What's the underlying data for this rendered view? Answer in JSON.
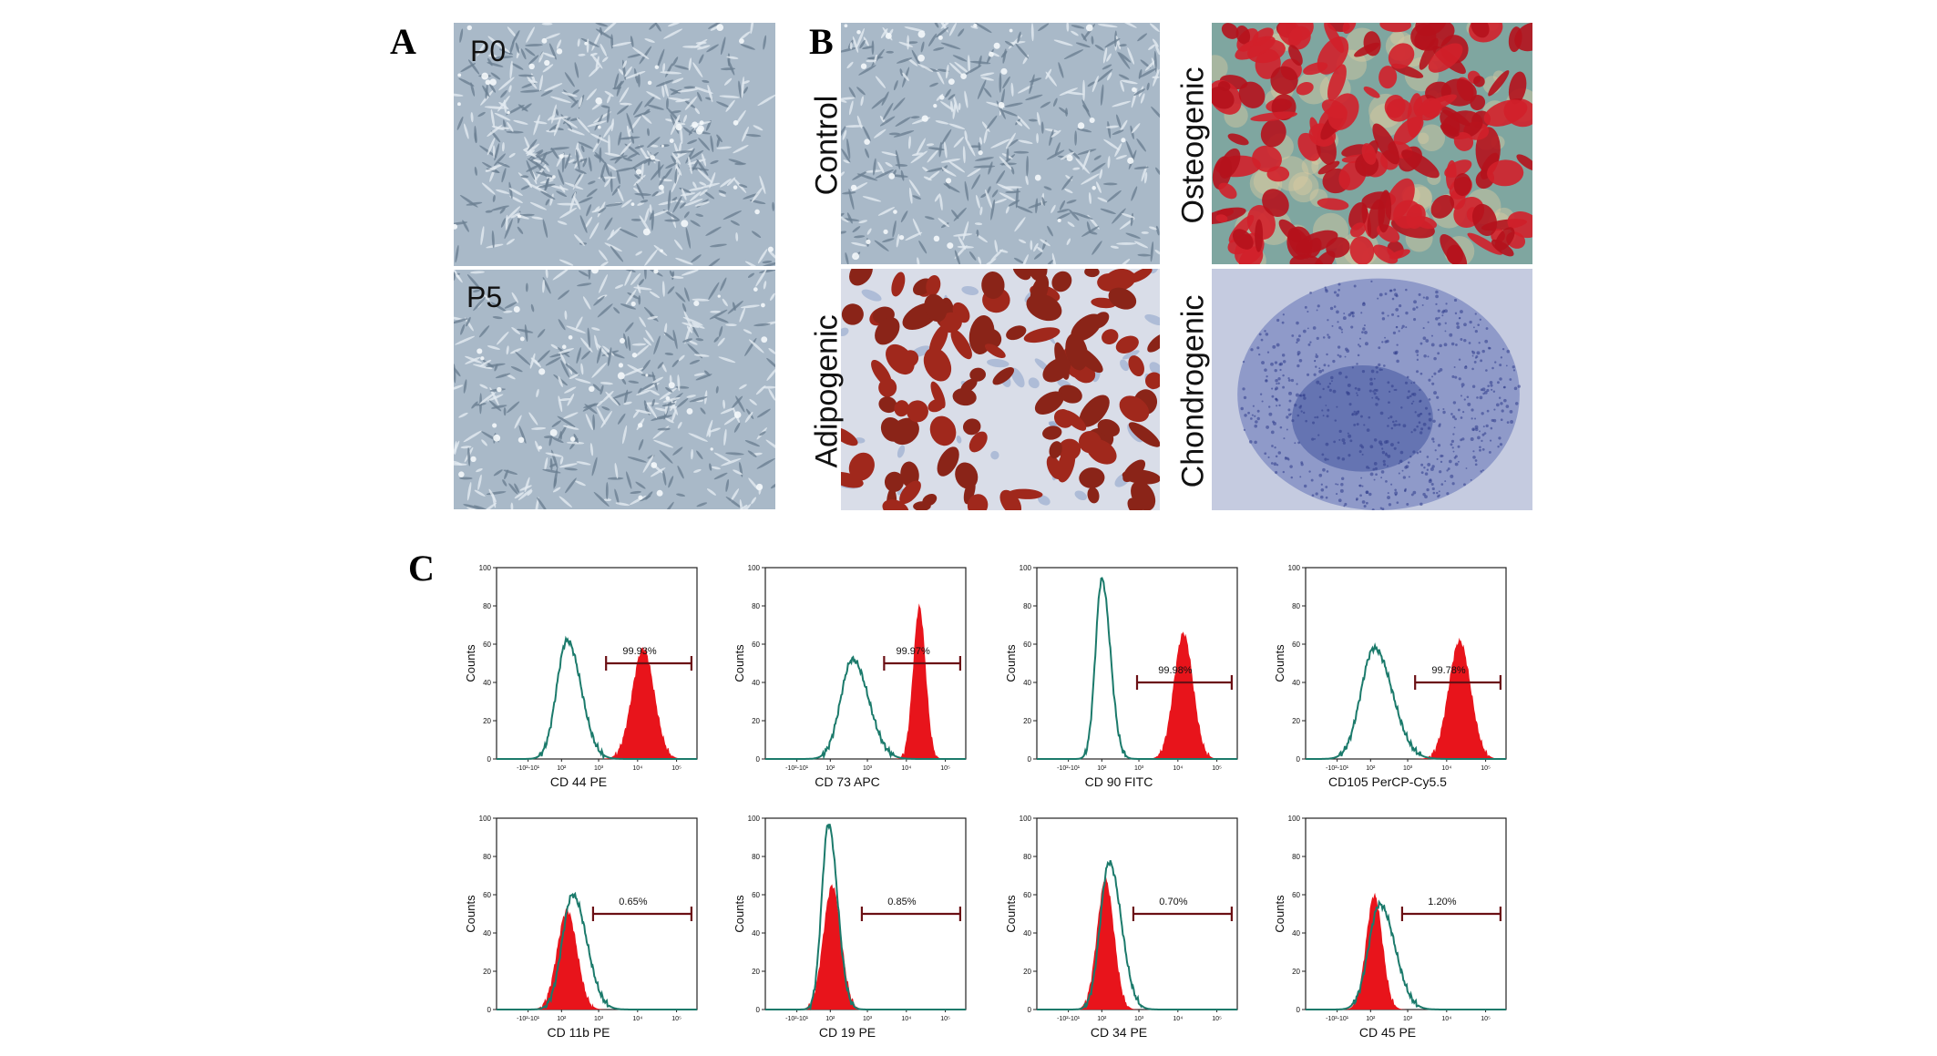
{
  "figure": {
    "panel_letters": {
      "a": "A",
      "b": "B",
      "c": "C"
    },
    "panel_a": {
      "images": [
        {
          "label": "P0",
          "description": "cells"
        },
        {
          "label": "P5",
          "description": "cells"
        }
      ]
    },
    "panel_b": {
      "images": [
        {
          "label": "Control"
        },
        {
          "label": "Adipogenic"
        },
        {
          "label": "Osteogenic"
        },
        {
          "label": "Chondrogenic"
        }
      ]
    }
  },
  "chart_data": [
    {
      "type": "area",
      "xlabel": "CD 44 PE",
      "ylabel": "Counts",
      "ylim": [
        0,
        100
      ],
      "gate_label": "99.93%",
      "stain": "positive",
      "x_ticks": [
        "-10²-10¹",
        "10²",
        "10³",
        "10⁴",
        "10⁵"
      ],
      "y_ticks": [
        "0",
        "20",
        "40",
        "60",
        "80",
        "100"
      ],
      "series": [
        {
          "kind": "control",
          "peak_x": 1.9,
          "peak_y": 62,
          "width": 0.28
        },
        {
          "kind": "stained",
          "peak_x": 3.95,
          "peak_y": 58,
          "width": 0.3
        }
      ]
    },
    {
      "type": "area",
      "xlabel": "CD 73 APC",
      "ylabel": "Counts",
      "ylim": [
        0,
        100
      ],
      "gate_label": "99.97%",
      "stain": "positive",
      "x_ticks": [
        "-10²-10¹",
        "10²",
        "10³",
        "10⁴",
        "10⁵"
      ],
      "y_ticks": [
        "0",
        "20",
        "40",
        "60",
        "80",
        "100"
      ],
      "series": [
        {
          "kind": "control",
          "peak_x": 2.35,
          "peak_y": 52,
          "width": 0.32
        },
        {
          "kind": "stained",
          "peak_x": 4.15,
          "peak_y": 80,
          "width": 0.17
        }
      ]
    },
    {
      "type": "area",
      "xlabel": "CD 90 FITC",
      "ylabel": "Counts",
      "ylim": [
        0,
        100
      ],
      "gate_label": "99.98%",
      "stain": "positive",
      "x_ticks": [
        "-10²-10¹",
        "10²",
        "10³",
        "10⁴",
        "10⁵"
      ],
      "y_ticks": [
        "0",
        "20",
        "40",
        "60",
        "80",
        "100"
      ],
      "series": [
        {
          "kind": "control",
          "peak_x": 1.75,
          "peak_y": 94,
          "width": 0.17
        },
        {
          "kind": "stained",
          "peak_x": 3.95,
          "peak_y": 66,
          "width": 0.26
        }
      ]
    },
    {
      "type": "area",
      "xlabel": "CD105 PerCP-Cy5.5",
      "ylabel": "Counts",
      "ylim": [
        0,
        100
      ],
      "gate_label": "99.78%",
      "stain": "positive",
      "x_ticks": [
        "-10²-10¹",
        "10²",
        "10³",
        "10⁴",
        "10⁵"
      ],
      "y_ticks": [
        "0",
        "20",
        "40",
        "60",
        "80",
        "100"
      ],
      "series": [
        {
          "kind": "control",
          "peak_x": 1.85,
          "peak_y": 58,
          "width": 0.36
        },
        {
          "kind": "stained",
          "peak_x": 4.15,
          "peak_y": 62,
          "width": 0.3
        }
      ]
    },
    {
      "type": "area",
      "xlabel": "CD 11b PE",
      "ylabel": "Counts",
      "ylim": [
        0,
        100
      ],
      "gate_label": "0.65%",
      "stain": "negative",
      "x_ticks": [
        "-10²-10¹",
        "10²",
        "10³",
        "10⁴",
        "10⁵"
      ],
      "y_ticks": [
        "0",
        "20",
        "40",
        "60",
        "80",
        "100"
      ],
      "series": [
        {
          "kind": "control",
          "peak_x": 2.05,
          "peak_y": 60,
          "width": 0.28
        },
        {
          "kind": "stained",
          "peak_x": 1.9,
          "peak_y": 52,
          "width": 0.27
        }
      ]
    },
    {
      "type": "area",
      "xlabel": "CD 19 PE",
      "ylabel": "Counts",
      "ylim": [
        0,
        100
      ],
      "gate_label": "0.85%",
      "stain": "negative",
      "x_ticks": [
        "-10²-10¹",
        "10²",
        "10³",
        "10⁴",
        "10⁵"
      ],
      "y_ticks": [
        "0",
        "20",
        "40",
        "60",
        "80",
        "100"
      ],
      "series": [
        {
          "kind": "control",
          "peak_x": 1.7,
          "peak_y": 97,
          "width": 0.18
        },
        {
          "kind": "stained",
          "peak_x": 1.8,
          "peak_y": 65,
          "width": 0.24
        }
      ]
    },
    {
      "type": "area",
      "xlabel": "CD 34 PE",
      "ylabel": "Counts",
      "ylim": [
        0,
        100
      ],
      "gate_label": "0.70%",
      "stain": "negative",
      "x_ticks": [
        "-10²-10¹",
        "10²",
        "10³",
        "10⁴",
        "10⁵"
      ],
      "y_ticks": [
        "0",
        "20",
        "40",
        "60",
        "80",
        "100"
      ],
      "series": [
        {
          "kind": "control",
          "peak_x": 1.95,
          "peak_y": 77,
          "width": 0.24
        },
        {
          "kind": "stained",
          "peak_x": 1.85,
          "peak_y": 68,
          "width": 0.23
        }
      ]
    },
    {
      "type": "area",
      "xlabel": "CD 45 PE",
      "ylabel": "Counts",
      "ylim": [
        0,
        100
      ],
      "gate_label": "1.20%",
      "stain": "negative",
      "x_ticks": [
        "-10²-10¹",
        "10²",
        "10³",
        "10⁴",
        "10⁵"
      ],
      "y_ticks": [
        "0",
        "20",
        "40",
        "60",
        "80",
        "100"
      ],
      "series": [
        {
          "kind": "control",
          "peak_x": 2.0,
          "peak_y": 55,
          "width": 0.3
        },
        {
          "kind": "stained",
          "peak_x": 1.85,
          "peak_y": 60,
          "width": 0.22
        }
      ]
    }
  ],
  "colors": {
    "control_line": "#1b7a6b",
    "stained_fill": "#e8141b",
    "gate_line": "#6b0f14",
    "axis": "#222222"
  }
}
